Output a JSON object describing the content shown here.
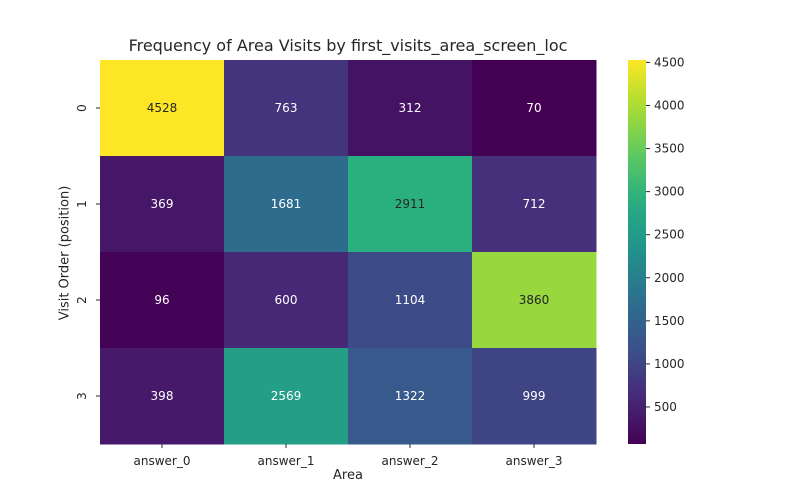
{
  "chart_data": {
    "type": "heatmap",
    "title": "Frequency of Area Visits by first_visits_area_screen_loc",
    "xlabel": "Area",
    "ylabel": "Visit Order (position)",
    "x_categories": [
      "answer_0",
      "answer_1",
      "answer_2",
      "answer_3"
    ],
    "y_categories": [
      "0",
      "1",
      "2",
      "3"
    ],
    "values": [
      [
        4528,
        763,
        312,
        70
      ],
      [
        369,
        1681,
        2911,
        712
      ],
      [
        96,
        600,
        1104,
        3860
      ],
      [
        398,
        2569,
        1322,
        999
      ]
    ],
    "value_format": "integer",
    "colorbar": {
      "colormap": "viridis",
      "min": 70,
      "max": 4528,
      "ticks": [
        500,
        1000,
        1500,
        2000,
        2500,
        3000,
        3500,
        4000,
        4500
      ]
    },
    "grid": false,
    "legend": "right colorbar"
  }
}
